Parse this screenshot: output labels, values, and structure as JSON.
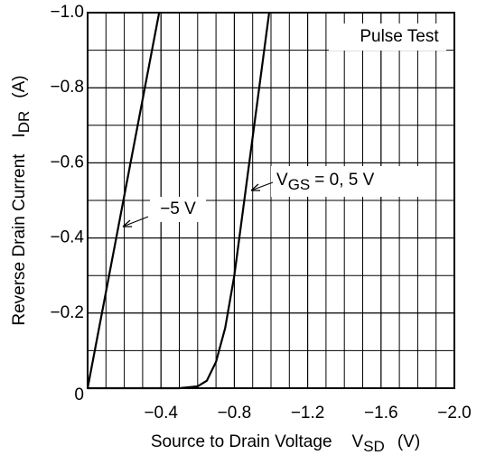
{
  "chart_data": {
    "type": "line",
    "x_label": {
      "text": "Source to Drain Voltage",
      "symbol": "V",
      "subscript": "SD",
      "unit": "(V)"
    },
    "y_label": {
      "text": "Reverse Drain Current",
      "symbol": "I",
      "subscript": "DR",
      "unit": "(A)"
    },
    "xlim": [
      0,
      -2.0
    ],
    "ylim": [
      0,
      -1.0
    ],
    "xticks": [
      {
        "value": -0.4,
        "label": "−0.4"
      },
      {
        "value": -0.8,
        "label": "−0.8"
      },
      {
        "value": -1.2,
        "label": "−1.2"
      },
      {
        "value": -1.6,
        "label": "−1.6"
      },
      {
        "value": -2.0,
        "label": "−2.0"
      }
    ],
    "yticks": [
      0,
      {
        "value": -0.2,
        "label": "−0.2"
      },
      {
        "value": -0.4,
        "label": "−0.4"
      },
      {
        "value": -0.6,
        "label": "−0.6"
      },
      {
        "value": -0.8,
        "label": "−0.8"
      },
      {
        "value": -1.0,
        "label": "−1.0"
      }
    ],
    "x_grid": [
      -0.1,
      -0.2,
      -0.3,
      -0.4,
      -0.5,
      -0.6,
      -0.7,
      -0.8,
      -0.9,
      -1.0,
      -1.1,
      -1.2,
      -1.3,
      -1.4,
      -1.5,
      -1.6,
      -1.7,
      -1.8,
      -1.9
    ],
    "y_grid": [
      -0.1,
      -0.2,
      -0.3,
      -0.4,
      -0.5,
      -0.6,
      -0.7,
      -0.8,
      -0.9
    ],
    "grid": true,
    "series": [
      {
        "color": "#000000",
        "x": [
          0,
          -0.39
        ],
        "values": [
          0,
          -1.0
        ]
      },
      {
        "color": "#000000",
        "x": [
          0,
          -0.5,
          -0.6,
          -0.65,
          -0.7,
          -0.75,
          -0.8,
          -0.99
        ],
        "values": [
          0,
          0,
          -0.005,
          -0.02,
          -0.07,
          -0.16,
          -0.3,
          -1.0
        ]
      }
    ],
    "annotations": [
      {
        "text": "Pulse Test"
      },
      {
        "text": "−5 V"
      },
      {
        "symbol": "V",
        "subscript": "GS",
        "text": "= 0, 5 V"
      }
    ]
  }
}
